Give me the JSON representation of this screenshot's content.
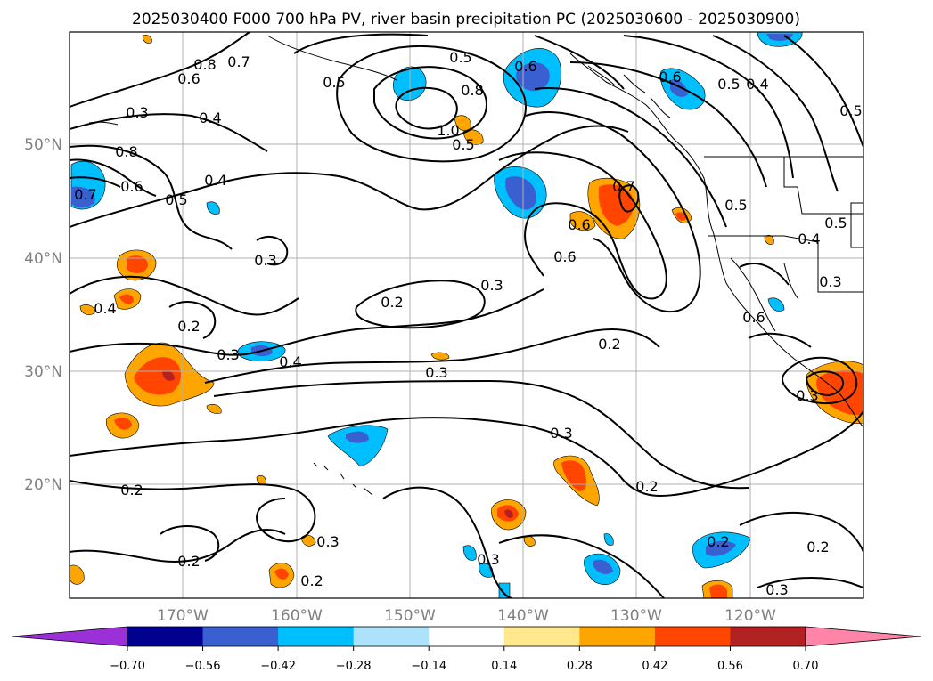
{
  "figure": {
    "title": "2025030400 F000 700 hPa PV, river basin precipitation PC (2025030600 - 2025030900)"
  },
  "map": {
    "projection": "plate-carree",
    "lon_range": [
      -180,
      -110
    ],
    "lat_range": [
      10,
      60
    ],
    "gridlines": true,
    "lat_labels": [
      "50°N",
      "40°N",
      "30°N",
      "20°N"
    ],
    "lon_labels": [
      "170°W",
      "160°W",
      "150°W",
      "140°W",
      "130°W",
      "120°W"
    ],
    "contour_labels": [
      {
        "text": "0.8"
      },
      {
        "text": "0.7"
      },
      {
        "text": "0.6"
      },
      {
        "text": "0.5"
      },
      {
        "text": "0.5"
      },
      {
        "text": "0.4"
      },
      {
        "text": "0.3"
      },
      {
        "text": "0.8"
      },
      {
        "text": "0.6"
      },
      {
        "text": "0.5"
      },
      {
        "text": "0.4"
      },
      {
        "text": "1.0"
      },
      {
        "text": "0.8"
      },
      {
        "text": "0.5"
      },
      {
        "text": "0.6"
      },
      {
        "text": "0.6"
      },
      {
        "text": "0.5"
      },
      {
        "text": "0.4"
      },
      {
        "text": "0.5"
      },
      {
        "text": "0.7"
      },
      {
        "text": "0.6"
      },
      {
        "text": "0.6"
      },
      {
        "text": "0.5"
      },
      {
        "text": "0.5"
      },
      {
        "text": "0.4"
      },
      {
        "text": "0.3"
      },
      {
        "text": "0.3"
      },
      {
        "text": "0.2"
      },
      {
        "text": "0.3"
      },
      {
        "text": "0.4"
      },
      {
        "text": "0.2"
      },
      {
        "text": "0.3"
      },
      {
        "text": "0.4"
      },
      {
        "text": "0.3"
      },
      {
        "text": "0.2"
      },
      {
        "text": "0.6"
      },
      {
        "text": "0.3"
      },
      {
        "text": "0.2"
      },
      {
        "text": "0.2"
      },
      {
        "text": "0.3"
      },
      {
        "text": "0.3"
      },
      {
        "text": "0.2"
      },
      {
        "text": "0.2"
      },
      {
        "text": "0.2"
      },
      {
        "text": "0.2"
      },
      {
        "text": "0.3"
      },
      {
        "text": "0.7"
      },
      {
        "text": "0.3"
      }
    ]
  },
  "colorbar": {
    "ticks": [
      "−0.70",
      "−0.56",
      "−0.42",
      "−0.28",
      "−0.14",
      "0.14",
      "0.28",
      "0.42",
      "0.56",
      "0.70"
    ],
    "levels": [
      -0.7,
      -0.56,
      -0.42,
      -0.28,
      -0.14,
      0.14,
      0.28,
      0.42,
      0.56,
      0.7
    ],
    "colors": [
      "#9b30d9",
      "#000090",
      "#3a5fd0",
      "#00bfff",
      "#ade2fb",
      "#ffffff",
      "#ffe98c",
      "#ffa500",
      "#ff4500",
      "#b22222",
      "#ff85a8"
    ],
    "extend": "both"
  }
}
